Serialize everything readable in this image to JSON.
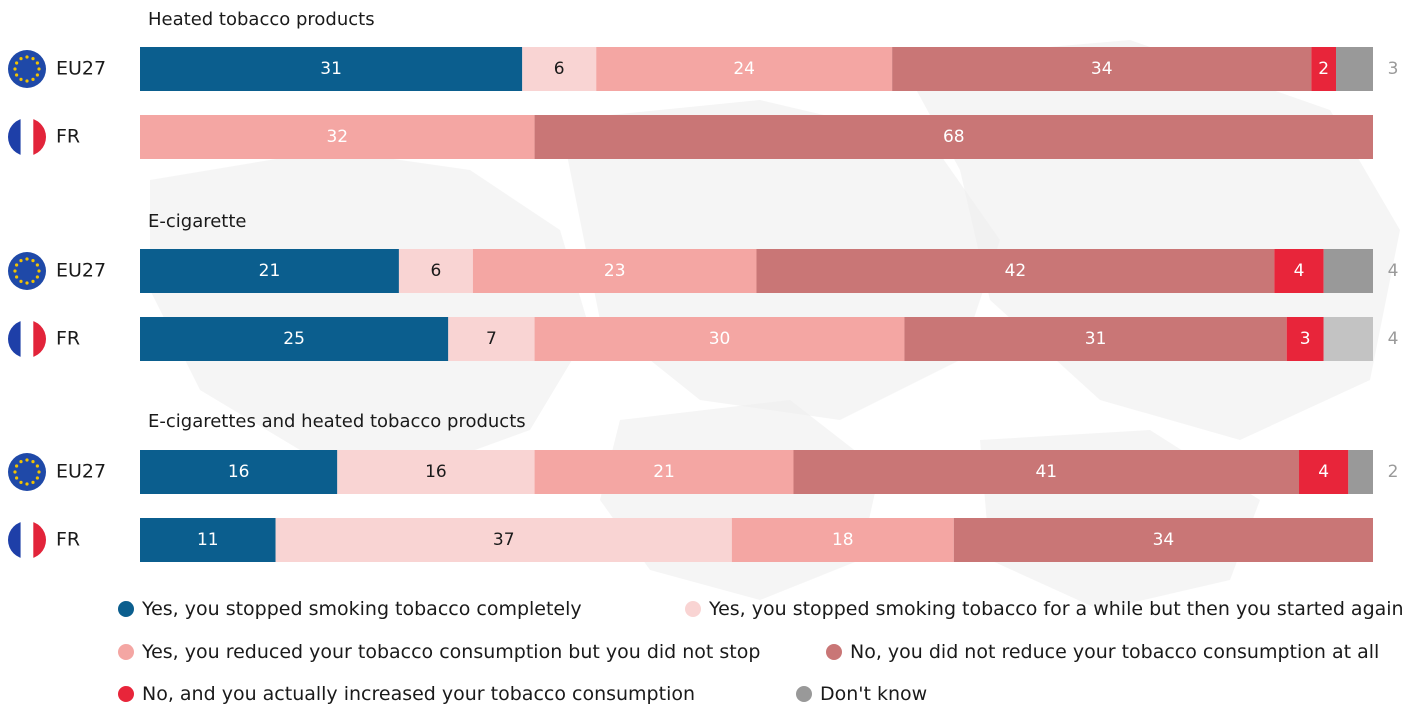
{
  "chart_data": {
    "type": "bar",
    "orientation": "horizontal",
    "stacked": true,
    "xlim": [
      0,
      100
    ],
    "legend_position": "bottom",
    "categories_order": [
      "stopped_completely",
      "stopped_while",
      "reduced",
      "not_reduced",
      "increased",
      "dont_know"
    ],
    "series": [
      {
        "key": "stopped_completely",
        "name": "Yes, you stopped smoking tobacco completely",
        "color": "#0b5e8e"
      },
      {
        "key": "stopped_while",
        "name": "Yes, you stopped smoking tobacco for a while but then you started again",
        "color": "#f9d4d3"
      },
      {
        "key": "reduced",
        "name": "Yes, you reduced your tobacco consumption but you did not stop",
        "color": "#f4a6a3"
      },
      {
        "key": "not_reduced",
        "name": "No, you did not reduce your tobacco consumption at all",
        "color": "#c97676"
      },
      {
        "key": "increased",
        "name": "No, and you actually increased your tobacco consumption",
        "color": "#e8253a"
      },
      {
        "key": "dont_know",
        "name": "Don't know",
        "color": "#999999"
      }
    ],
    "groups": [
      {
        "title": "Heated tobacco products",
        "rows": [
          {
            "label": "EU27",
            "flag": "eu-flag",
            "values": [
              31,
              6,
              24,
              34,
              2,
              3
            ],
            "labels": [
              "31",
              "6",
              "24",
              "34",
              "2",
              ""
            ],
            "dont_know_color": "#999999",
            "outside_label": "3"
          },
          {
            "label": "FR",
            "flag": "fr-flag",
            "values": [
              0,
              0,
              32,
              68,
              0,
              0
            ],
            "labels": [
              "",
              "",
              "32",
              "68",
              "",
              ""
            ],
            "dont_know_color": "#999999",
            "outside_label": ""
          }
        ]
      },
      {
        "title": "E-cigarette",
        "rows": [
          {
            "label": "EU27",
            "flag": "eu-flag",
            "values": [
              21,
              6,
              23,
              42,
              4,
              4
            ],
            "labels": [
              "21",
              "6",
              "23",
              "42",
              "4",
              ""
            ],
            "dont_know_color": "#999999",
            "outside_label": "4"
          },
          {
            "label": "FR",
            "flag": "fr-flag",
            "values": [
              25,
              7,
              30,
              31,
              3,
              4
            ],
            "labels": [
              "25",
              "7",
              "30",
              "31",
              "3",
              ""
            ],
            "dont_know_color": "#c3c3c3",
            "outside_label": "4"
          }
        ]
      },
      {
        "title": "E-cigarettes and heated tobacco products",
        "rows": [
          {
            "label": "EU27",
            "flag": "eu-flag",
            "values": [
              16,
              16,
              21,
              41,
              4,
              2
            ],
            "labels": [
              "16",
              "16",
              "21",
              "41",
              "4",
              ""
            ],
            "dont_know_color": "#999999",
            "outside_label": "2"
          },
          {
            "label": "FR",
            "flag": "fr-flag",
            "values": [
              11,
              37,
              18,
              34,
              0,
              0
            ],
            "labels": [
              "11",
              "37",
              "18",
              "34",
              "",
              ""
            ],
            "dont_know_color": "#999999",
            "outside_label": ""
          }
        ]
      }
    ]
  },
  "label_colors": {
    "stopped_completely": "#ffffff",
    "stopped_while": "#1a1a1a",
    "reduced": "#ffffff",
    "not_reduced": "#ffffff",
    "increased": "#ffffff",
    "dont_know": "#ffffff",
    "outside": "#9a9a9a",
    "row_label": "#1a1a1a",
    "group_title": "#1a1a1a"
  },
  "flag_colors": {
    "eu_blue": "#1f49a8",
    "eu_star": "#f2c300",
    "fr_blue": "#1e3fa8",
    "fr_white": "#ffffff",
    "fr_red": "#e2243a"
  },
  "background": {
    "map_color": "#ededed"
  }
}
